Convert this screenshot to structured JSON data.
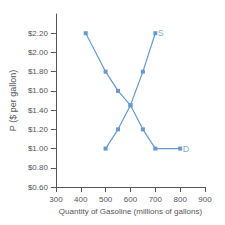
{
  "chart_data": {
    "type": "line",
    "xlabel": "Quantity of Gasoline (millions of gallons)",
    "ylabel": "P ($ per gallon)",
    "series": [
      {
        "x": [
          500,
          550,
          600,
          650,
          700
        ],
        "values": [
          1.0,
          1.2,
          1.45,
          1.8,
          2.2
        ],
        "color": "#6699cc",
        "marker": "square"
      },
      {
        "x": [
          420,
          500,
          550,
          600,
          650,
          700,
          800
        ],
        "values": [
          2.2,
          1.8,
          1.6,
          1.45,
          1.2,
          1.0,
          1.0
        ],
        "color": "#6699cc",
        "marker": "square"
      }
    ],
    "annotations": [
      {
        "text": "S",
        "x": 706,
        "y": 2.2,
        "color": "#6699cc"
      },
      {
        "text": "D",
        "x": 806,
        "y": 1.0,
        "color": "#6699cc"
      }
    ],
    "xlim": [
      300,
      900
    ],
    "ylim": [
      0.6,
      2.4
    ],
    "xticks": [
      300,
      400,
      500,
      600,
      700,
      800,
      900
    ],
    "yticks": [
      {
        "value": 0.6,
        "label": "$0.60"
      },
      {
        "value": 0.8,
        "label": "$0.80"
      },
      {
        "value": 1.0,
        "label": "$1.00"
      },
      {
        "value": 1.2,
        "label": "$1.20"
      },
      {
        "value": 1.4,
        "label": "$1.40"
      },
      {
        "value": 1.6,
        "label": "$1.60"
      },
      {
        "value": 1.8,
        "label": "$1.80"
      },
      {
        "value": 2.0,
        "label": "$2.00"
      },
      {
        "value": 2.2,
        "label": "$2.20"
      }
    ],
    "grid": false
  }
}
